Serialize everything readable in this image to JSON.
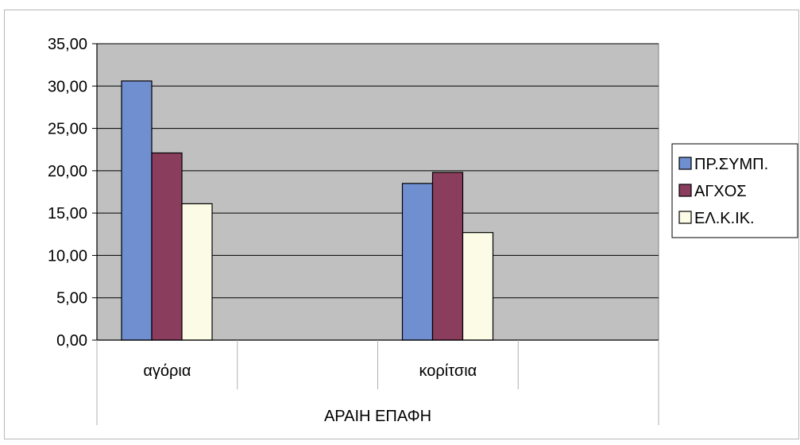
{
  "chart_data": {
    "type": "bar",
    "title": "",
    "xlabel": "ΑΡΑΙΗ ΕΠΑΦΗ",
    "ylabel": "",
    "ylim": [
      0,
      35
    ],
    "yticks": [
      "0,00",
      "5,00",
      "10,00",
      "15,00",
      "20,00",
      "25,00",
      "30,00",
      "35,00"
    ],
    "categories": [
      "αγόρια",
      "",
      "κορίτσια",
      ""
    ],
    "series": [
      {
        "name": "ΠΡ.ΣΥΜΠ.",
        "color": "#6f8fd0",
        "values": [
          30.6,
          null,
          18.5,
          null
        ]
      },
      {
        "name": "ΑΓΧΟΣ",
        "color": "#8b3d5e",
        "values": [
          22.1,
          null,
          19.8,
          null
        ]
      },
      {
        "name": "ΕΛ.Κ.ΙΚ.",
        "color": "#fbfbe6",
        "values": [
          16.1,
          null,
          12.7,
          null
        ]
      }
    ],
    "grid": true,
    "legend": "right",
    "plot_background": "#c0c0c0"
  }
}
